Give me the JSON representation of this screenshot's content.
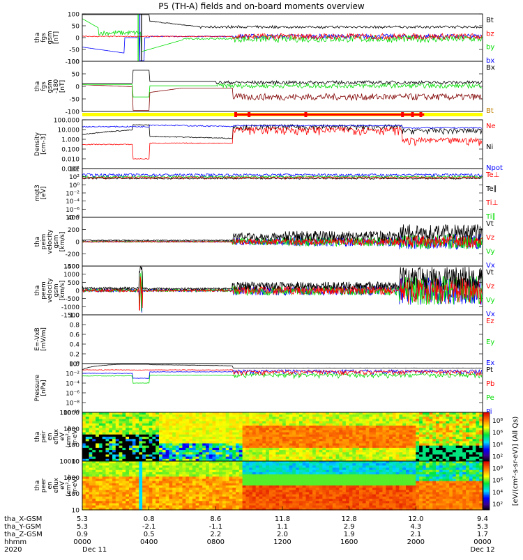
{
  "title": "P5 (TH-A) fields and on-board moments overview",
  "date_start": "2020",
  "date_start_day": "Dec 11",
  "date_end_day": "Dec 12",
  "chart_data": {
    "type": "line",
    "panels": [
      {
        "id": "fgs_gsm",
        "ylabel": [
          "tha",
          "fgs",
          "gsm",
          "[nT]"
        ],
        "ylim": [
          -100,
          100
        ],
        "yticks": [
          "100",
          "50",
          "0",
          "-50",
          "-100"
        ],
        "legend": [
          {
            "label": "Bt",
            "color": "#000000"
          },
          {
            "label": "bz",
            "color": "#ff0000"
          },
          {
            "label": "by",
            "color": "#00dd00"
          },
          {
            "label": "bx",
            "color": "#0000ff"
          }
        ]
      },
      {
        "id": "fgs_dsl",
        "ylabel": [
          "tha",
          "fgs",
          "gsm",
          "-180",
          "[nT]"
        ],
        "ylim": [
          -125,
          100
        ],
        "yticks": [
          "100",
          "50",
          "0",
          "-50",
          "-100"
        ],
        "legend": [
          {
            "label": "Bx",
            "color": "#000000"
          },
          {
            "label": "Bt",
            "color": "#c08000"
          }
        ]
      },
      {
        "id": "density",
        "ylabel": [
          "Density",
          "[cm-3]"
        ],
        "yscale": "log",
        "yticks": [
          "100.000",
          "10.000",
          "1.000",
          "0.100",
          "0.010",
          "0.001"
        ],
        "legend": [
          {
            "label": "Ne",
            "color": "#ff0000"
          },
          {
            "label": "Ni",
            "color": "#000000"
          },
          {
            "label": "Npot",
            "color": "#0000ff"
          }
        ]
      },
      {
        "id": "temperature",
        "ylabel": [
          "mgt3",
          "[eV]"
        ],
        "yscale": "log",
        "yticks": [
          "10⁴",
          "10²",
          "10⁰",
          "10⁻²",
          "10⁻⁴",
          "10⁻⁶",
          "10⁻⁸"
        ],
        "legend": [
          {
            "label": "Te⊥",
            "color": "#ff0000"
          },
          {
            "label": "Te∥",
            "color": "#000000"
          },
          {
            "label": "Ti⊥",
            "color": "#ff0000"
          },
          {
            "label": "Ti∥",
            "color": "#00dd00"
          }
        ]
      },
      {
        "id": "peim_velocity",
        "ylabel": [
          "tha",
          "peim",
          "velocity",
          "gsm",
          "[km/s]"
        ],
        "ylim": [
          -400,
          400
        ],
        "yticks": [
          "400",
          "200",
          "0",
          "-200",
          "-400"
        ],
        "legend": [
          {
            "label": "Vt",
            "color": "#000000"
          },
          {
            "label": "Vz",
            "color": "#ff0000"
          },
          {
            "label": "Vy",
            "color": "#00dd00"
          },
          {
            "label": "Vx",
            "color": "#0000ff"
          }
        ]
      },
      {
        "id": "peem_velocity",
        "ylabel": [
          "tha",
          "peem",
          "velocity",
          "gsm",
          "[km/s]"
        ],
        "ylim": [
          -1500,
          1500
        ],
        "yticks": [
          "1500",
          "1000",
          "500",
          "0",
          "-500",
          "-1000",
          "-1500"
        ],
        "legend": [
          {
            "label": "Vt",
            "color": "#000000"
          },
          {
            "label": "Vz",
            "color": "#ff0000"
          },
          {
            "label": "Vy",
            "color": "#00dd00"
          },
          {
            "label": "Vx",
            "color": "#0000ff"
          }
        ]
      },
      {
        "id": "efield",
        "ylabel": [
          "E=-VxB",
          "[mV/m]"
        ],
        "ylim": [
          0,
          1
        ],
        "yticks": [
          "1.0",
          "0.8",
          "0.6",
          "0.4",
          "0.2",
          "0.0"
        ],
        "legend": [
          {
            "label": "Ez",
            "color": "#ff0000"
          },
          {
            "label": "Ey",
            "color": "#00dd00"
          },
          {
            "label": "Ex",
            "color": "#0000ff"
          }
        ]
      },
      {
        "id": "pressure",
        "ylabel": [
          "Pressure",
          "[nPa]"
        ],
        "yscale": "log",
        "yticks": [
          "10⁰",
          "10⁻²",
          "10⁻⁴",
          "10⁻⁶",
          "10⁻⁸",
          "10⁻¹⁰"
        ],
        "legend": [
          {
            "label": "Pt",
            "color": "#000000"
          },
          {
            "label": "Pb",
            "color": "#ff0000"
          },
          {
            "label": "Pe",
            "color": "#00dd00"
          },
          {
            "label": "Pi",
            "color": "#0000ff"
          }
        ]
      },
      {
        "id": "peir_eflux",
        "type": "heatmap",
        "ylabel": [
          "tha",
          "peir",
          "en",
          "eflux",
          "eV",
          "(cm²-s-",
          "sr-eV)"
        ],
        "yticks": [
          "10000",
          "1000",
          "100",
          "10"
        ]
      },
      {
        "id": "peer_eflux",
        "type": "heatmap",
        "ylabel": [
          "tha",
          "peer",
          "en",
          "eflux",
          "eV",
          "(cm²-s-",
          "sr-eV)"
        ],
        "yticks": [
          "10000",
          "1000",
          "100",
          "10"
        ]
      }
    ],
    "colorbar": {
      "label": "[eV/(cm²-s-sr-eV)] (All Qs)",
      "ticks": [
        "10⁸",
        "10⁶",
        "10⁴",
        "10²",
        "10⁸",
        "10⁶",
        "10⁴",
        "10²"
      ]
    },
    "xaxis": {
      "rows": [
        {
          "label": "tha_X-GSM",
          "values": [
            "5.3",
            "0.8",
            "8.6",
            "11.8",
            "12.8",
            "12.0",
            "9.4"
          ]
        },
        {
          "label": "tha_Y-GSM",
          "values": [
            "5.3",
            "-2.1",
            "-1.1",
            "1.1",
            "2.9",
            "4.3",
            "5.3"
          ]
        },
        {
          "label": "tha_Z-GSM",
          "values": [
            "0.9",
            "0.5",
            "2.2",
            "2.0",
            "1.9",
            "2.1",
            "1.7"
          ]
        },
        {
          "label": "hhmm",
          "values": [
            "0000",
            "0400",
            "0800",
            "1200",
            "1600",
            "2000",
            "0000"
          ]
        }
      ],
      "xmid_extra": "-2.1",
      "x_values_hours": [
        0,
        4,
        8,
        12,
        16,
        20,
        24
      ]
    }
  }
}
